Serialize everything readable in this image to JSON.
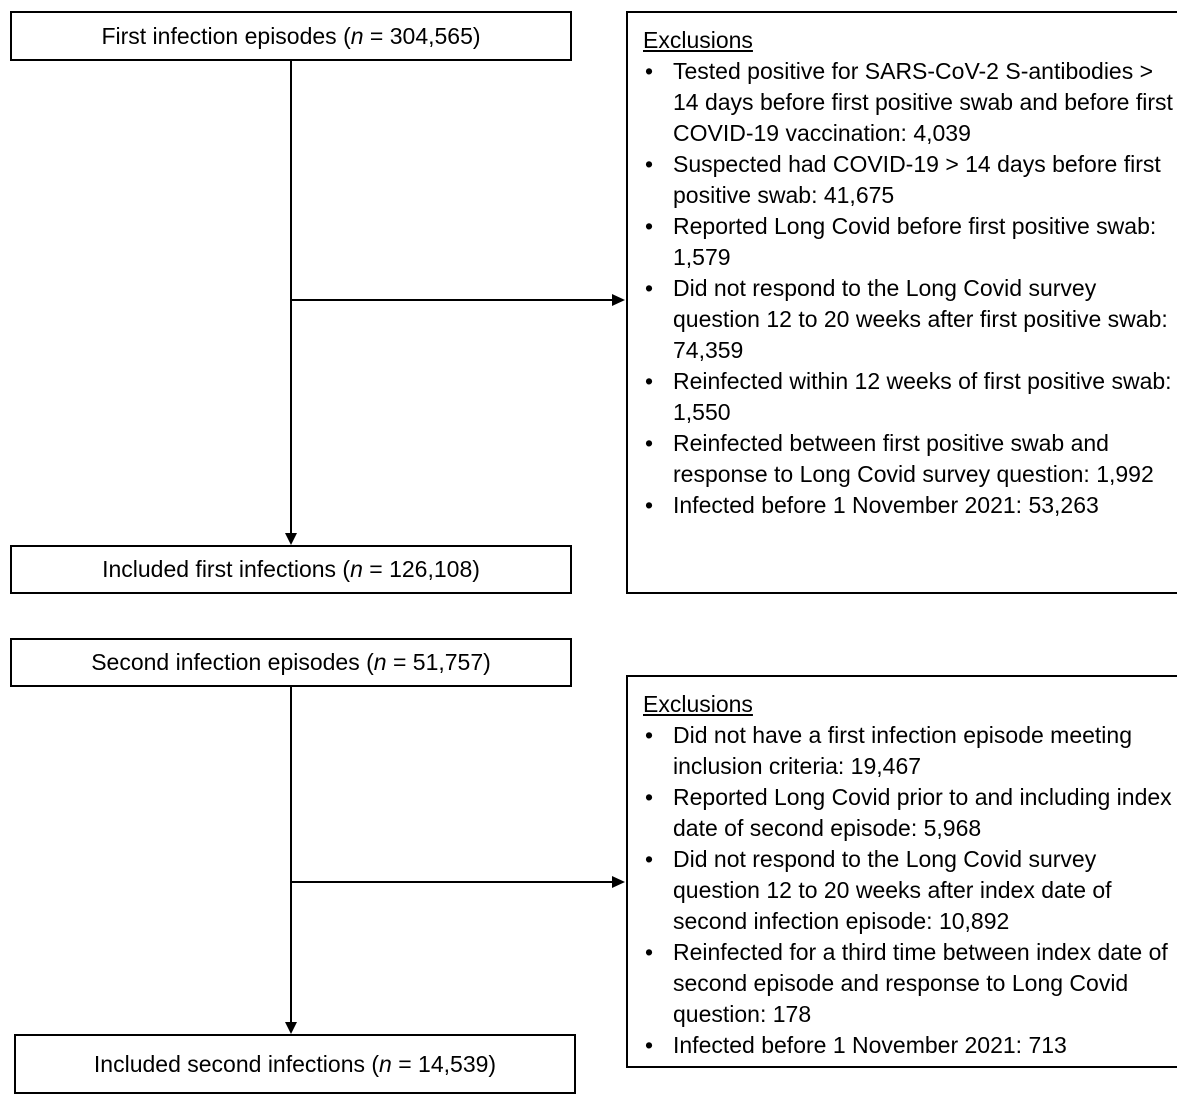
{
  "section1": {
    "top": {
      "prefix": "First infection episodes (",
      "n": "n",
      "suffix": " = 304,565)"
    },
    "bottom": {
      "prefix": "Included first infections (",
      "n": "n",
      "suffix": " = 126,108)"
    },
    "exclusions": {
      "heading": "Exclusions",
      "items": [
        "Tested positive for SARS-CoV-2 S-antibodies > 14 days before first positive swab and before first COVID-19 vaccination: 4,039",
        "Suspected had COVID-19 > 14 days before first positive swab: 41,675",
        "Reported Long Covid before first positive swab: 1,579",
        "Did not respond to the Long Covid survey question 12 to 20 weeks after first positive swab: 74,359",
        "Reinfected within 12 weeks of first positive swab: 1,550",
        "Reinfected between first positive swab and response to Long Covid survey question: 1,992",
        "Infected before 1 November 2021: 53,263"
      ]
    }
  },
  "section2": {
    "top": {
      "prefix": "Second infection episodes (",
      "n": "n",
      "suffix": " = 51,757)"
    },
    "bottom": {
      "prefix": "Included second infections (",
      "n": "n",
      "suffix": " = 14,539)"
    },
    "exclusions": {
      "heading": "Exclusions",
      "items": [
        "Did not have a first infection episode meeting inclusion criteria: 19,467",
        "Reported Long Covid prior to and including index date of second episode: 5,968",
        "Did not respond to the Long Covid survey question 12 to 20 weeks after index date of second infection episode: 10,892",
        "Reinfected for a third time between index date of second episode and response to Long Covid question: 178",
        "Infected before 1 November 2021: 713"
      ]
    }
  }
}
